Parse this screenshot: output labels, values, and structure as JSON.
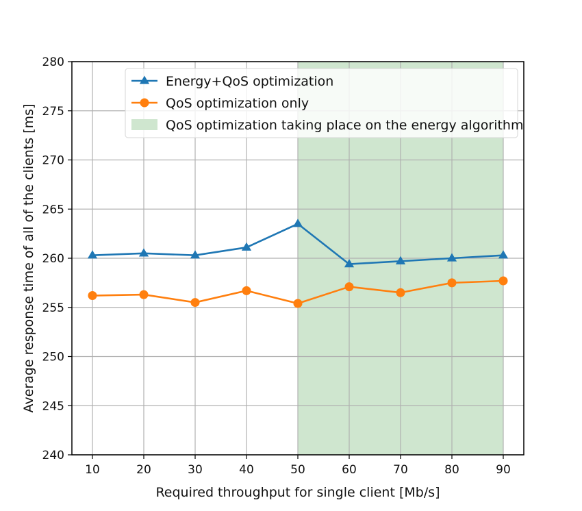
{
  "chart_data": {
    "type": "line",
    "title": "",
    "xlabel": "Required throughput for single client [Mb/s]",
    "ylabel": "Average response time of all of the clients [ms]",
    "x": [
      10,
      20,
      30,
      40,
      50,
      60,
      70,
      80,
      90
    ],
    "xlim": [
      6,
      94
    ],
    "ylim": [
      240,
      280
    ],
    "xticks": [
      10,
      20,
      30,
      40,
      50,
      60,
      70,
      80,
      90
    ],
    "yticks": [
      240,
      245,
      250,
      255,
      260,
      265,
      270,
      275,
      280
    ],
    "grid": true,
    "legend_position": "top-right",
    "series": [
      {
        "name": "Energy+QoS optimization",
        "marker": "triangle",
        "color": "#1f77b4",
        "values": [
          260.3,
          260.5,
          260.3,
          261.1,
          263.5,
          259.4,
          259.7,
          260.0,
          260.3
        ]
      },
      {
        "name": "QoS optimization only",
        "marker": "circle",
        "color": "#ff7f0e",
        "values": [
          256.2,
          256.3,
          255.5,
          256.7,
          255.4,
          257.1,
          256.5,
          257.5,
          257.7
        ]
      }
    ],
    "shaded_region": {
      "label": "QoS optimization taking place on the energy algorithm",
      "x_range": [
        50,
        90
      ],
      "color": "#cfe6cf"
    }
  }
}
